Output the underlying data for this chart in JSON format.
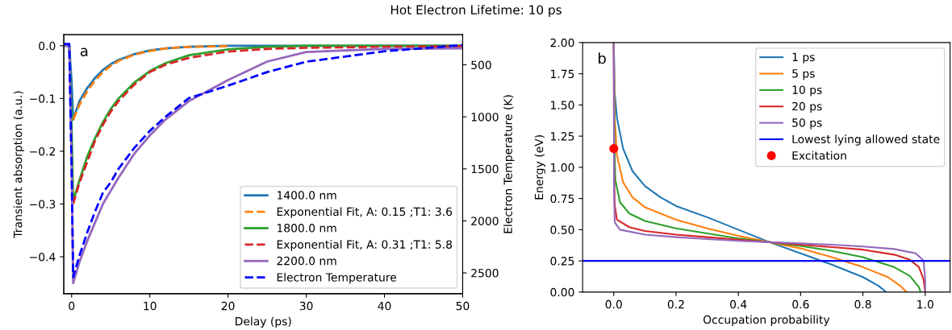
{
  "chart_data": [
    {
      "type": "line",
      "title": "Hot Electron Lifetime: 10 ps",
      "xlabel": "Delay (ps)",
      "ylabel": "Transient absorption (a.u.)",
      "y2label": "Electron Temperature (K)",
      "annotations": [
        "a"
      ],
      "xlim": [
        -1,
        50
      ],
      "ylim": [
        -0.47,
        0.021
      ],
      "y2lim": [
        2700,
        210
      ],
      "xticks": [
        0,
        10,
        20,
        30,
        40,
        50
      ],
      "yticks": [
        {
          "value": 0.0,
          "label": "0.0"
        },
        {
          "value": -0.1,
          "label": "−0.1"
        },
        {
          "value": -0.2,
          "label": "−0.2"
        },
        {
          "value": -0.3,
          "label": "−0.3"
        },
        {
          "value": -0.4,
          "label": "−0.4"
        }
      ],
      "y2ticks": [
        500,
        1000,
        1500,
        2000,
        2500
      ],
      "legend": "bottom right",
      "grid": false,
      "series": [
        {
          "name": "1400.0 nm",
          "color": "#1f77b4",
          "line_style": "solid",
          "x": [
            -1,
            -0.3,
            0,
            0.2,
            1,
            2,
            3,
            4,
            5,
            6,
            8,
            10,
            12,
            15,
            20,
            30,
            40,
            50
          ],
          "values": [
            0,
            0,
            -0.07,
            -0.14,
            -0.105,
            -0.08,
            -0.061,
            -0.046,
            -0.035,
            -0.027,
            -0.016,
            -0.009,
            -0.005,
            -0.002,
            0,
            0,
            0,
            0
          ]
        },
        {
          "name": "Exponential Fit, A: 0.15 ;T1: 3.6",
          "color": "#ff7f0e",
          "line_style": "dashed",
          "x": [
            0.2,
            1,
            2,
            3,
            4,
            5,
            6,
            8,
            10,
            12,
            15,
            20
          ],
          "values": [
            -0.14,
            -0.112,
            -0.086,
            -0.066,
            -0.05,
            -0.038,
            -0.029,
            -0.017,
            -0.01,
            -0.005,
            -0.002,
            -0.001
          ]
        },
        {
          "name": "1800.0 nm",
          "color": "#2ca02c",
          "line_style": "solid",
          "x": [
            -1,
            -0.3,
            0,
            0.2,
            1,
            2,
            3,
            4,
            5,
            6,
            8,
            10,
            12,
            15,
            20,
            25,
            30,
            50
          ],
          "values": [
            0,
            0,
            -0.15,
            -0.295,
            -0.255,
            -0.21,
            -0.175,
            -0.145,
            -0.12,
            -0.1,
            -0.07,
            -0.048,
            -0.033,
            -0.018,
            -0.007,
            -0.002,
            0,
            0
          ]
        },
        {
          "name": "Exponential Fit, A: 0.31 ;T1: 5.8",
          "color": "#d62728",
          "line_style": "dashed",
          "x": [
            0.2,
            1,
            2,
            3,
            4,
            5,
            6,
            8,
            10,
            12,
            15,
            20,
            25,
            30,
            40,
            50
          ],
          "values": [
            -0.3,
            -0.26,
            -0.22,
            -0.18,
            -0.15,
            -0.125,
            -0.105,
            -0.074,
            -0.05,
            -0.036,
            -0.023,
            -0.011,
            -0.006,
            -0.004,
            -0.002,
            -0.001
          ]
        },
        {
          "name": "2200.0 nm",
          "color": "#9467bd",
          "line_style": "solid",
          "x": [
            -1,
            -0.3,
            0,
            0.2,
            1,
            2,
            3,
            4,
            5,
            6,
            8,
            10,
            12,
            15,
            20,
            25,
            30,
            40,
            50
          ],
          "values": [
            0,
            0,
            -0.22,
            -0.45,
            -0.41,
            -0.37,
            -0.335,
            -0.3,
            -0.275,
            -0.25,
            -0.205,
            -0.17,
            -0.14,
            -0.105,
            -0.065,
            -0.03,
            -0.012,
            -0.006,
            -0.005
          ]
        },
        {
          "name": "Electron Temperature",
          "color": "#0000ff",
          "line_style": "dashed",
          "axis": "y2",
          "x": [
            -1,
            -0.3,
            0,
            0.2,
            1,
            2,
            3,
            4,
            5,
            6,
            8,
            10,
            12,
            15,
            20,
            25,
            30,
            40,
            50
          ],
          "values": [
            300,
            300,
            1500,
            2540,
            2335,
            2110,
            1910,
            1730,
            1630,
            1500,
            1300,
            1135,
            1000,
            820,
            700,
            570,
            470,
            370,
            310
          ]
        }
      ]
    },
    {
      "type": "line",
      "xlabel": "Occupation probability",
      "ylabel": "Energy (eV)",
      "annotations": [
        "b"
      ],
      "xlim": [
        -0.1,
        1.08
      ],
      "ylim": [
        0,
        2
      ],
      "xticks": [
        {
          "value": 0.0,
          "label": "0.0"
        },
        {
          "value": 0.2,
          "label": "0.2"
        },
        {
          "value": 0.4,
          "label": "0.4"
        },
        {
          "value": 0.6,
          "label": "0.6"
        },
        {
          "value": 0.8,
          "label": "0.8"
        },
        {
          "value": 1.0,
          "label": "1.0"
        }
      ],
      "yticks": [
        {
          "value": 0,
          "label": "0.00"
        },
        {
          "value": 0.25,
          "label": "0.25"
        },
        {
          "value": 0.5,
          "label": "0.50"
        },
        {
          "value": 0.75,
          "label": "0.75"
        },
        {
          "value": 1.0,
          "label": "1.00"
        },
        {
          "value": 1.25,
          "label": "1.25"
        },
        {
          "value": 1.5,
          "label": "1.50"
        },
        {
          "value": 1.75,
          "label": "1.75"
        },
        {
          "value": 2.0,
          "label": "2.00"
        }
      ],
      "legend": "top right",
      "grid": false,
      "series": [
        {
          "name": "1 ps",
          "color": "#1f77b4",
          "line_style": "solid",
          "x": [
            0,
            0.003,
            0.01,
            0.03,
            0.06,
            0.1,
            0.15,
            0.2,
            0.3,
            0.4,
            0.5,
            0.6,
            0.7,
            0.8,
            0.85,
            0.875
          ],
          "values": [
            2.0,
            1.6,
            1.4,
            1.15,
            0.97,
            0.85,
            0.76,
            0.69,
            0.6,
            0.5,
            0.4,
            0.31,
            0.22,
            0.12,
            0.05,
            0.0
          ]
        },
        {
          "name": "5 ps",
          "color": "#ff7f0e",
          "line_style": "solid",
          "x": [
            0,
            0.003,
            0.01,
            0.03,
            0.06,
            0.1,
            0.2,
            0.3,
            0.4,
            0.5,
            0.6,
            0.7,
            0.8,
            0.88,
            0.92,
            0.94
          ],
          "values": [
            2.0,
            1.4,
            1.1,
            0.88,
            0.76,
            0.68,
            0.58,
            0.51,
            0.45,
            0.4,
            0.35,
            0.28,
            0.2,
            0.12,
            0.05,
            0.0
          ]
        },
        {
          "name": "10 ps",
          "color": "#2ca02c",
          "line_style": "solid",
          "x": [
            0,
            0.002,
            0.005,
            0.02,
            0.05,
            0.1,
            0.2,
            0.3,
            0.4,
            0.5,
            0.6,
            0.7,
            0.8,
            0.9,
            0.95,
            0.98,
            0.985
          ],
          "values": [
            2.0,
            1.2,
            0.9,
            0.72,
            0.63,
            0.57,
            0.51,
            0.47,
            0.43,
            0.4,
            0.37,
            0.33,
            0.28,
            0.2,
            0.13,
            0.04,
            0.0
          ]
        },
        {
          "name": "20 ps",
          "color": "#d62728",
          "line_style": "solid",
          "x": [
            0,
            0.001,
            0.003,
            0.01,
            0.05,
            0.1,
            0.2,
            0.3,
            0.4,
            0.5,
            0.6,
            0.7,
            0.8,
            0.9,
            0.95,
            0.98,
            0.995,
            1.0
          ],
          "values": [
            2.0,
            1.0,
            0.7,
            0.58,
            0.52,
            0.49,
            0.46,
            0.44,
            0.42,
            0.4,
            0.38,
            0.36,
            0.34,
            0.3,
            0.26,
            0.2,
            0.1,
            0.0
          ]
        },
        {
          "name": "50 ps",
          "color": "#9467bd",
          "line_style": "solid",
          "x": [
            0,
            0.001,
            0.003,
            0.02,
            0.1,
            0.2,
            0.3,
            0.4,
            0.5,
            0.6,
            0.7,
            0.8,
            0.9,
            0.97,
            0.995,
            1.0,
            1.0
          ],
          "values": [
            2.0,
            0.8,
            0.56,
            0.5,
            0.46,
            0.44,
            0.425,
            0.41,
            0.4,
            0.39,
            0.38,
            0.365,
            0.345,
            0.31,
            0.25,
            0.1,
            0.0
          ]
        },
        {
          "name": "Lowest lying allowed state",
          "color": "#0000ff",
          "line_style": "solid",
          "x": [
            -0.1,
            1.08
          ],
          "values": [
            0.25,
            0.25
          ]
        },
        {
          "name": "Excitation",
          "type": "scatter",
          "color": "#ff0000",
          "marker": "circle",
          "x": [
            0.0
          ],
          "values": [
            1.15
          ]
        }
      ]
    }
  ]
}
